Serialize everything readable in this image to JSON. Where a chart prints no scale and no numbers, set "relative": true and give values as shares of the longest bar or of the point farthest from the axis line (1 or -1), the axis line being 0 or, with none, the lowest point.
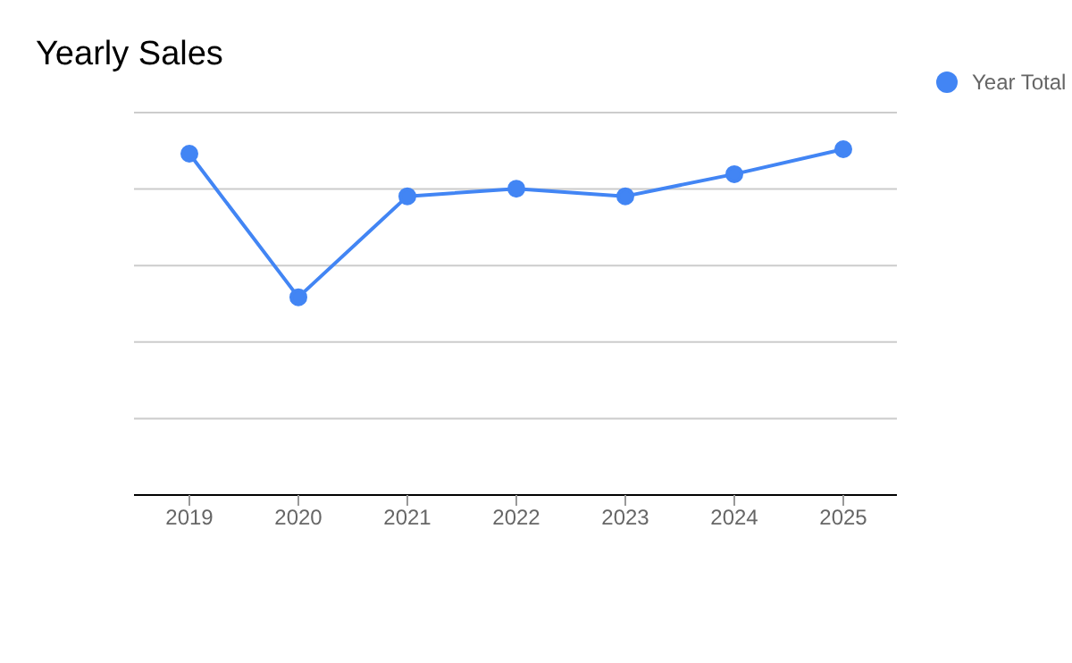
{
  "chart_data": {
    "type": "line",
    "title": "Yearly Sales",
    "categories": [
      "2019",
      "2020",
      "2021",
      "2022",
      "2023",
      "2024",
      "2025"
    ],
    "series": [
      {
        "name": "Year Total",
        "color": "#4285f4",
        "values": [
          0.987,
          0.572,
          0.864,
          0.886,
          0.864,
          0.928,
          1
        ]
      }
    ],
    "relative": true,
    "grid": "y",
    "legend": "top right",
    "marker": "circle"
  }
}
